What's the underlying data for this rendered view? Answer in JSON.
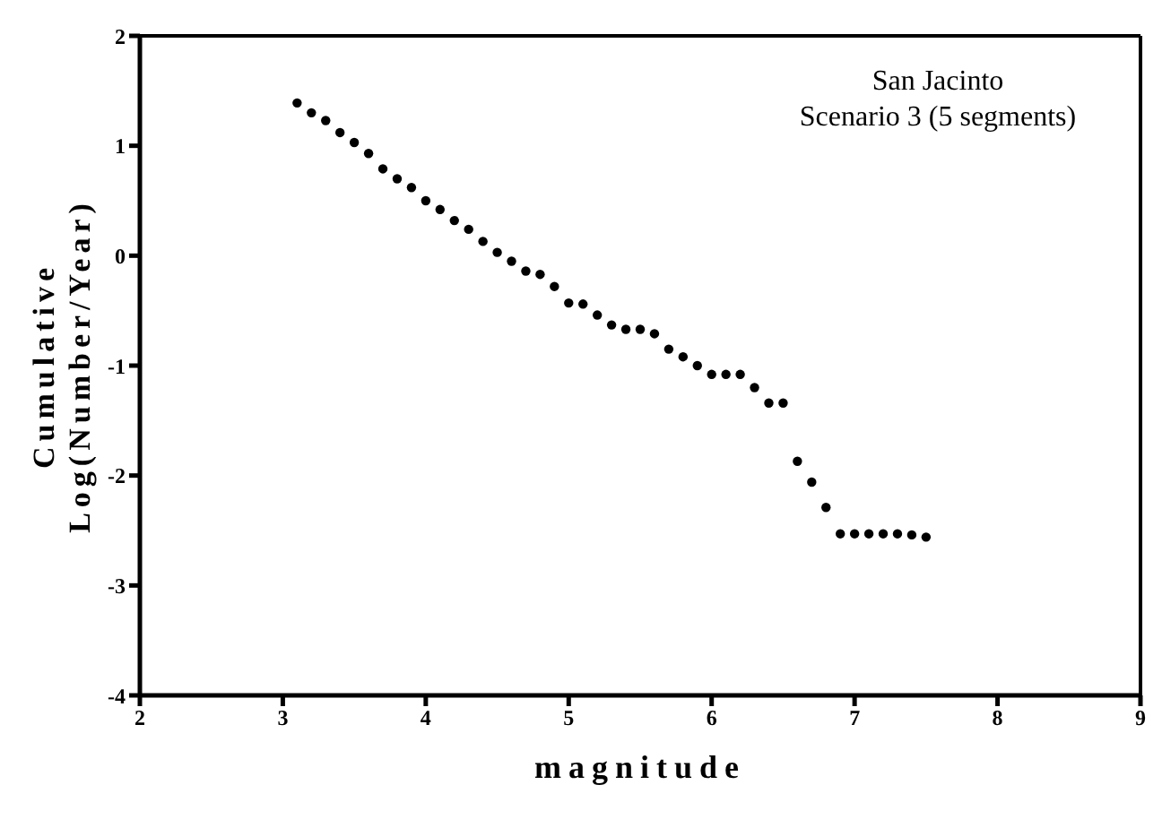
{
  "chart_data": {
    "type": "scatter",
    "xlabel": "magnitude",
    "ylabel": "Cumulative\nLog(Number/Year)",
    "annotations": [
      "San Jacinto\nScenario 3 (5 segments)"
    ],
    "x": [
      3.1,
      3.2,
      3.3,
      3.4,
      3.5,
      3.6,
      3.7,
      3.8,
      3.9,
      4.0,
      4.1,
      4.2,
      4.3,
      4.4,
      4.5,
      4.6,
      4.7,
      4.8,
      4.9,
      5.0,
      5.1,
      5.2,
      5.3,
      5.4,
      5.5,
      5.6,
      5.7,
      5.8,
      5.9,
      6.0,
      6.1,
      6.2,
      6.3,
      6.4,
      6.5,
      6.6,
      6.7,
      6.8,
      6.9,
      7.0,
      7.1,
      7.2,
      7.3,
      7.4,
      7.5
    ],
    "series": [
      {
        "color": "#000000",
        "values": [
          1.39,
          1.3,
          1.23,
          1.12,
          1.03,
          0.93,
          0.79,
          0.7,
          0.62,
          0.5,
          0.42,
          0.32,
          0.24,
          0.13,
          0.03,
          -0.05,
          -0.14,
          -0.17,
          -0.28,
          -0.43,
          -0.44,
          -0.54,
          -0.63,
          -0.67,
          -0.67,
          -0.71,
          -0.85,
          -0.92,
          -1.0,
          -1.08,
          -1.08,
          -1.08,
          -1.2,
          -1.34,
          -1.34,
          -1.87,
          -2.06,
          -2.29,
          -2.53,
          -2.53,
          -2.53,
          -2.53,
          -2.53,
          -2.54,
          -2.56
        ]
      }
    ],
    "xlim": [
      2,
      9
    ],
    "xticks": [
      2,
      3,
      4,
      5,
      6,
      7,
      8,
      9
    ],
    "ylim": [
      -4,
      2
    ],
    "yticks": [
      -4,
      -3,
      -2,
      -1,
      0,
      1,
      2
    ],
    "grid": false,
    "legend": false,
    "marker": "circle"
  }
}
